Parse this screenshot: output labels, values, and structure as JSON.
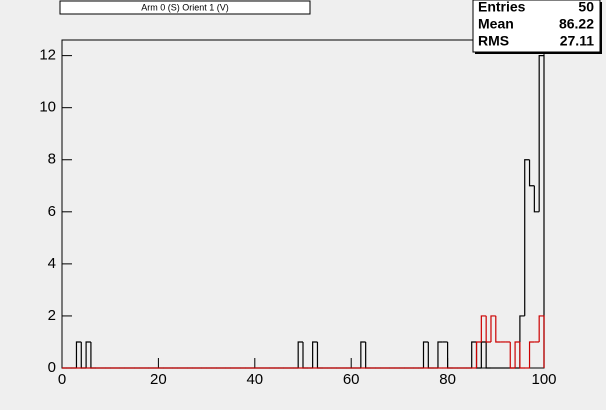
{
  "chart_data": {
    "type": "histogram",
    "title": "Arm 0 (S) Orient 1 (V)",
    "stats": [
      {
        "name": "Entries",
        "value": "50"
      },
      {
        "name": "Mean",
        "value": "86.22"
      },
      {
        "name": "RMS",
        "value": "27.11"
      }
    ],
    "bins": [
      0,
      1,
      2,
      3,
      4,
      5,
      6,
      7,
      8,
      9,
      10,
      11,
      12,
      13,
      14,
      15,
      16,
      17,
      18,
      19,
      20,
      21,
      22,
      23,
      24,
      25,
      26,
      27,
      28,
      29,
      30,
      31,
      32,
      33,
      34,
      35,
      36,
      37,
      38,
      39,
      40,
      41,
      42,
      43,
      44,
      45,
      46,
      47,
      48,
      49,
      50,
      51,
      52,
      53,
      54,
      55,
      56,
      57,
      58,
      59,
      60,
      61,
      62,
      63,
      64,
      65,
      66,
      67,
      68,
      69,
      70,
      71,
      72,
      73,
      74,
      75,
      76,
      77,
      78,
      79,
      80,
      81,
      82,
      83,
      84,
      85,
      86,
      87,
      88,
      89,
      90,
      91,
      92,
      93,
      94,
      95,
      96,
      97,
      98,
      99,
      100
    ],
    "series": [
      {
        "color": "#000000",
        "values": [
          0,
          0,
          0,
          1,
          0,
          1,
          0,
          0,
          0,
          0,
          0,
          0,
          0,
          0,
          0,
          0,
          0,
          0,
          0,
          0,
          0,
          0,
          0,
          0,
          0,
          0,
          0,
          0,
          0,
          0,
          0,
          0,
          0,
          0,
          0,
          0,
          0,
          0,
          0,
          0,
          0,
          0,
          0,
          0,
          0,
          0,
          0,
          0,
          0,
          1,
          0,
          0,
          1,
          0,
          0,
          0,
          0,
          0,
          0,
          0,
          0,
          0,
          1,
          0,
          0,
          0,
          0,
          0,
          0,
          0,
          0,
          0,
          0,
          0,
          0,
          1,
          0,
          0,
          1,
          1,
          0,
          0,
          0,
          0,
          0,
          1,
          0,
          1,
          0,
          0,
          0,
          0,
          0,
          0,
          0,
          2,
          8,
          7,
          6,
          12
        ]
      },
      {
        "color": "#cc0000",
        "values": [
          0,
          0,
          0,
          0,
          0,
          0,
          0,
          0,
          0,
          0,
          0,
          0,
          0,
          0,
          0,
          0,
          0,
          0,
          0,
          0,
          0,
          0,
          0,
          0,
          0,
          0,
          0,
          0,
          0,
          0,
          0,
          0,
          0,
          0,
          0,
          0,
          0,
          0,
          0,
          0,
          0,
          0,
          0,
          0,
          0,
          0,
          0,
          0,
          0,
          0,
          0,
          0,
          0,
          0,
          0,
          0,
          0,
          0,
          0,
          0,
          0,
          0,
          0,
          0,
          0,
          0,
          0,
          0,
          0,
          0,
          0,
          0,
          0,
          0,
          0,
          0,
          0,
          0,
          0,
          0,
          0,
          0,
          0,
          0,
          0,
          0,
          1,
          2,
          1,
          2,
          1,
          1,
          1,
          0,
          1,
          0,
          0,
          1,
          1,
          2
        ]
      }
    ],
    "xlim": [
      0,
      100
    ],
    "xticks": [
      0,
      20,
      40,
      60,
      80,
      100
    ],
    "ylim": [
      0,
      12.6
    ],
    "yticks": [
      0,
      2,
      4,
      6,
      8,
      10,
      12
    ]
  }
}
